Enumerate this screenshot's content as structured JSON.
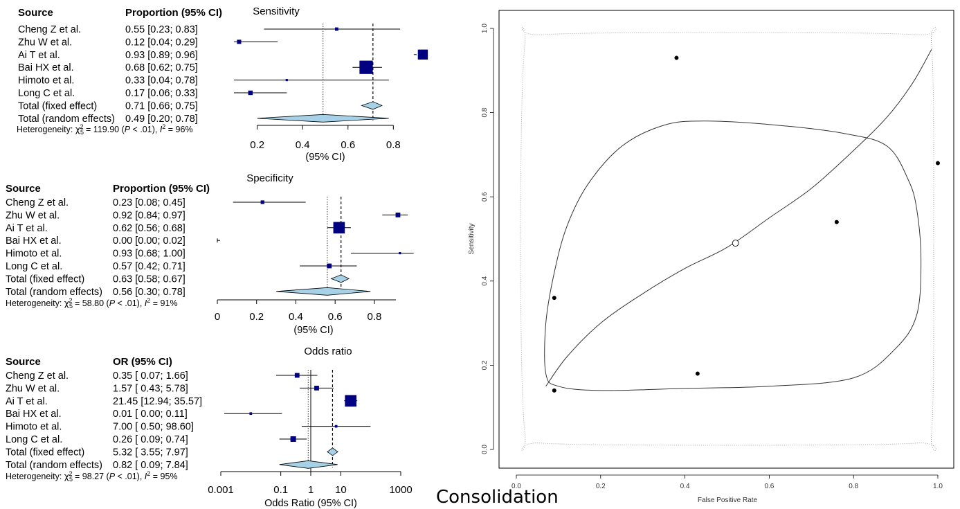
{
  "caption": "Consolidation",
  "chart_data": [
    {
      "type": "forest",
      "title": "Sensitivity",
      "col_source": "Source",
      "col_stat": "Proportion (95% CI)",
      "xlabel": "(95% CI)",
      "scale": "linear",
      "xlim": [
        0.14,
        0.86
      ],
      "ticks": [
        0.2,
        0.4,
        0.6,
        0.8
      ],
      "tick_labels": [
        "0.2",
        "0.4",
        "0.6",
        "0.8"
      ],
      "fixed_line": 0.71,
      "random_line": 0.49,
      "studies": [
        {
          "name": "Cheng Z et al.",
          "ci_text": "0.55 [0.23; 0.83]",
          "est": 0.55,
          "lo": 0.23,
          "hi": 0.83,
          "weight": 0.5
        },
        {
          "name": "Zhu W et al.",
          "ci_text": "0.12 [0.04; 0.29]",
          "est": 0.12,
          "lo": 0.04,
          "hi": 0.29,
          "weight": 0.8
        },
        {
          "name": "Ai T et al.",
          "ci_text": "0.93 [0.89; 0.96]",
          "est": 0.93,
          "lo": 0.89,
          "hi": 0.96,
          "weight": 4.5
        },
        {
          "name": "Bai HX et al.",
          "ci_text": "0.68 [0.62; 0.75]",
          "est": 0.68,
          "lo": 0.62,
          "hi": 0.75,
          "weight": 8.0
        },
        {
          "name": "Himoto  et al.",
          "ci_text": "0.33 [0.04; 0.78]",
          "est": 0.33,
          "lo": 0.04,
          "hi": 0.78,
          "weight": 0.2
        },
        {
          "name": "Long C et al.",
          "ci_text": "0.17 [0.06; 0.33]",
          "est": 0.17,
          "lo": 0.06,
          "hi": 0.33,
          "weight": 0.9
        }
      ],
      "fixed": {
        "name": "Total (fixed effect)",
        "ci_text": "0.71 [0.66; 0.75]",
        "est": 0.71,
        "lo": 0.66,
        "hi": 0.75
      },
      "random": {
        "name": "Total (random effects)",
        "ci_text": "0.49 [0.20; 0.78]",
        "est": 0.49,
        "lo": 0.2,
        "hi": 0.78
      },
      "heterogeneity": {
        "prefix": "Heterogeneity: ",
        "chi_sub": "5",
        "chi_val": " = 119.90 (",
        "p": "P",
        "p_rest": " < .01), ",
        "i": "I",
        "i_val": " = 96%"
      }
    },
    {
      "type": "forest",
      "title": "Specificity",
      "col_source": "Source",
      "col_stat": "Proportion (95% CI)",
      "xlabel": "(95% CI)",
      "scale": "linear",
      "xlim": [
        0,
        0.98
      ],
      "ticks": [
        0,
        0.2,
        0.4,
        0.6,
        0.8
      ],
      "tick_labels": [
        "0",
        "0.2",
        "0.4",
        "0.6",
        "0.8"
      ],
      "fixed_line": 0.63,
      "random_line": 0.56,
      "studies": [
        {
          "name": "Cheng Z et al.",
          "ci_text": "0.23 [0.08; 0.45]",
          "est": 0.23,
          "lo": 0.08,
          "hi": 0.45,
          "weight": 0.6
        },
        {
          "name": "Zhu W et al.",
          "ci_text": "0.92 [0.84; 0.97]",
          "est": 0.92,
          "lo": 0.84,
          "hi": 0.97,
          "weight": 1.0
        },
        {
          "name": "Ai T et al.",
          "ci_text": "0.62 [0.56; 0.68]",
          "est": 0.62,
          "lo": 0.56,
          "hi": 0.68,
          "weight": 6.0
        },
        {
          "name": "Bai HX et al.",
          "ci_text": "0.00 [0.00; 0.02]",
          "est": 0.0,
          "lo": 0.0,
          "hi": 0.02,
          "weight": 0.0
        },
        {
          "name": "Himoto  et al.",
          "ci_text": "0.93 [0.68; 1.00]",
          "est": 0.93,
          "lo": 0.68,
          "hi": 1.0,
          "weight": 0.2
        },
        {
          "name": "Long C et al.",
          "ci_text": "0.57 [0.42; 0.71]",
          "est": 0.57,
          "lo": 0.42,
          "hi": 0.71,
          "weight": 1.0
        }
      ],
      "fixed": {
        "name": "Total (fixed effect)",
        "ci_text": "0.63 [0.58; 0.67]",
        "est": 0.63,
        "lo": 0.58,
        "hi": 0.67
      },
      "random": {
        "name": "Total (random effects)",
        "ci_text": "0.56 [0.30; 0.78]",
        "est": 0.56,
        "lo": 0.3,
        "hi": 0.78
      },
      "heterogeneity": {
        "prefix": "Heterogeneity: ",
        "chi_sub": "5",
        "chi_val": " = 58.80 (",
        "p": "P",
        "p_rest": " < .01), ",
        "i": "I",
        "i_val": " = 91%"
      }
    },
    {
      "type": "forest",
      "title": "Odds ratio",
      "col_source": "Source",
      "col_stat": "OR (95% CI)",
      "xlabel": "Odds Ratio (95% CI)",
      "scale": "log",
      "xlim": [
        0.001,
        1000
      ],
      "ticks": [
        0.001,
        0.1,
        1,
        10,
        1000
      ],
      "tick_labels": [
        "0.001",
        "0.1",
        "1",
        "10",
        "1000"
      ],
      "fixed_line": 5.32,
      "random_line": 0.82,
      "null_line": 1,
      "studies": [
        {
          "name": "Cheng Z et al.",
          "ci_text": "0.35 [ 0.07;  1.66]",
          "est": 0.35,
          "lo": 0.07,
          "hi": 1.66,
          "weight": 1.0
        },
        {
          "name": "Zhu W et al.",
          "ci_text": "1.57 [ 0.43;  5.78]",
          "est": 1.57,
          "lo": 0.43,
          "hi": 5.78,
          "weight": 1.0
        },
        {
          "name": "Ai T et al.",
          "ci_text": "21.45 [12.94; 35.57]",
          "est": 21.45,
          "lo": 12.94,
          "hi": 35.57,
          "weight": 6.0
        },
        {
          "name": "Bai HX et al.",
          "ci_text": "0.01 [ 0.00;  0.11]",
          "est": 0.01,
          "lo": 0.0013,
          "hi": 0.11,
          "weight": 0.3
        },
        {
          "name": "Himoto  et al.",
          "ci_text": "7.00 [ 0.50; 98.60]",
          "est": 7.0,
          "lo": 0.5,
          "hi": 98.6,
          "weight": 0.3
        },
        {
          "name": "Long C et al.",
          "ci_text": "0.26 [ 0.09;  0.74]",
          "est": 0.26,
          "lo": 0.09,
          "hi": 0.74,
          "weight": 1.4
        }
      ],
      "fixed": {
        "name": "Total (fixed effect)",
        "ci_text": "5.32 [ 3.55;  7.97]",
        "est": 5.32,
        "lo": 3.55,
        "hi": 7.97
      },
      "random": {
        "name": "Total (random effects)",
        "ci_text": "0.82 [ 0.09;  7.84]",
        "est": 0.82,
        "lo": 0.09,
        "hi": 7.84
      },
      "heterogeneity": {
        "prefix": "Heterogeneity: ",
        "chi_sub": "5",
        "chi_val": " = 98.27 (",
        "p": "P",
        "p_rest": " < .01), ",
        "i": "I",
        "i_val": " = 95%"
      }
    },
    {
      "type": "sroc",
      "xlabel": "False Positive Rate",
      "ylabel": "Sensitivity",
      "xlim": [
        0,
        1
      ],
      "ylim": [
        0,
        1
      ],
      "xticks": [
        0.0,
        0.2,
        0.4,
        0.6,
        0.8,
        1.0
      ],
      "xtick_labels": [
        "0.0",
        "0.2",
        "0.4",
        "0.6",
        "0.8",
        "1.0"
      ],
      "yticks": [
        0.0,
        0.2,
        0.4,
        0.6,
        0.8,
        1.0
      ],
      "ytick_labels": [
        "0.0",
        "0.2",
        "0.4",
        "0.6",
        "0.8",
        "1.0"
      ],
      "points": [
        {
          "x": 0.38,
          "y": 0.93
        },
        {
          "x": 1.0,
          "y": 0.68
        },
        {
          "x": 0.76,
          "y": 0.54
        },
        {
          "x": 0.09,
          "y": 0.36
        },
        {
          "x": 0.43,
          "y": 0.18
        },
        {
          "x": 0.09,
          "y": 0.14
        }
      ],
      "summary_point": {
        "x": 0.52,
        "y": 0.49
      },
      "curve": [
        [
          0.07,
          0.15
        ],
        [
          0.12,
          0.22
        ],
        [
          0.2,
          0.3
        ],
        [
          0.3,
          0.37
        ],
        [
          0.4,
          0.43
        ],
        [
          0.5,
          0.48
        ],
        [
          0.6,
          0.55
        ],
        [
          0.7,
          0.62
        ],
        [
          0.8,
          0.71
        ],
        [
          0.88,
          0.79
        ],
        [
          0.94,
          0.87
        ],
        [
          0.985,
          0.95
        ]
      ],
      "confidence_region": [
        [
          0.07,
          0.18
        ],
        [
          0.1,
          0.15
        ],
        [
          0.2,
          0.14
        ],
        [
          0.4,
          0.145
        ],
        [
          0.6,
          0.15
        ],
        [
          0.8,
          0.17
        ],
        [
          0.9,
          0.24
        ],
        [
          0.95,
          0.32
        ],
        [
          0.96,
          0.45
        ],
        [
          0.95,
          0.57
        ],
        [
          0.93,
          0.64
        ],
        [
          0.88,
          0.72
        ],
        [
          0.78,
          0.75
        ],
        [
          0.62,
          0.77
        ],
        [
          0.45,
          0.78
        ],
        [
          0.35,
          0.77
        ],
        [
          0.25,
          0.72
        ],
        [
          0.17,
          0.63
        ],
        [
          0.12,
          0.53
        ],
        [
          0.09,
          0.42
        ],
        [
          0.07,
          0.3
        ]
      ],
      "prediction_region": [
        [
          0.02,
          0.04
        ],
        [
          0.06,
          0.015
        ],
        [
          0.5,
          0.01
        ],
        [
          0.95,
          0.015
        ],
        [
          0.985,
          0.04
        ],
        [
          0.99,
          0.5
        ],
        [
          0.985,
          0.96
        ],
        [
          0.95,
          0.985
        ],
        [
          0.5,
          0.99
        ],
        [
          0.06,
          0.985
        ],
        [
          0.02,
          0.96
        ],
        [
          0.01,
          0.5
        ]
      ]
    }
  ]
}
